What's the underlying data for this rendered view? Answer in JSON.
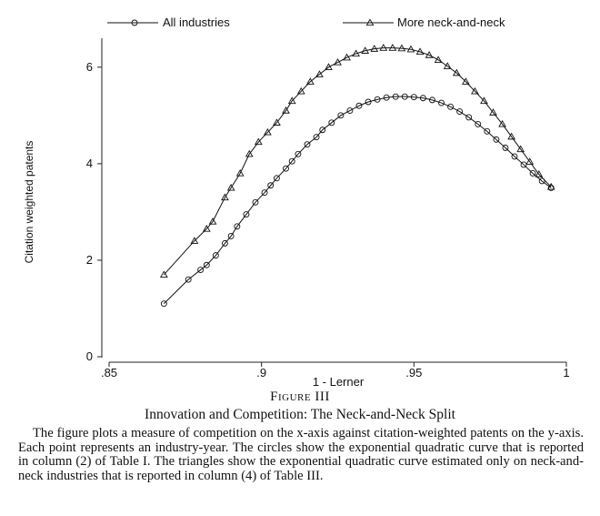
{
  "chart_data": {
    "type": "scatter",
    "xlabel": "1 - Lerner",
    "ylabel": "Citation weighted patents",
    "xlim": [
      0.85,
      1.0
    ],
    "ylim": [
      0,
      6.6
    ],
    "x_ticks": [
      0.85,
      0.9,
      0.95,
      1.0
    ],
    "x_tick_labels": [
      ".85",
      ".9",
      ".95",
      "1"
    ],
    "y_ticks": [
      0,
      2,
      4,
      6
    ],
    "y_tick_labels": [
      "0",
      "2",
      "4",
      "6"
    ],
    "grid": false,
    "legend_position": "top",
    "series": [
      {
        "name": "All industries",
        "marker": "circle",
        "x": [
          0.868,
          0.876,
          0.88,
          0.882,
          0.885,
          0.888,
          0.89,
          0.892,
          0.895,
          0.898,
          0.901,
          0.903,
          0.905,
          0.908,
          0.91,
          0.912,
          0.915,
          0.918,
          0.92,
          0.923,
          0.926,
          0.929,
          0.932,
          0.935,
          0.938,
          0.941,
          0.944,
          0.947,
          0.95,
          0.953,
          0.956,
          0.959,
          0.962,
          0.965,
          0.968,
          0.971,
          0.974,
          0.977,
          0.98,
          0.983,
          0.986,
          0.989,
          0.992,
          0.995
        ],
        "y": [
          1.1,
          1.6,
          1.8,
          1.9,
          2.1,
          2.35,
          2.5,
          2.7,
          2.95,
          3.2,
          3.4,
          3.55,
          3.7,
          3.9,
          4.05,
          4.2,
          4.4,
          4.55,
          4.7,
          4.85,
          5.0,
          5.1,
          5.2,
          5.28,
          5.33,
          5.37,
          5.39,
          5.39,
          5.38,
          5.36,
          5.32,
          5.26,
          5.18,
          5.08,
          4.96,
          4.82,
          4.67,
          4.5,
          4.33,
          4.15,
          3.98,
          3.8,
          3.64,
          3.5
        ]
      },
      {
        "name": "More neck-and-neck",
        "marker": "triangle",
        "x": [
          0.868,
          0.878,
          0.882,
          0.884,
          0.888,
          0.89,
          0.893,
          0.896,
          0.899,
          0.902,
          0.905,
          0.908,
          0.91,
          0.913,
          0.916,
          0.919,
          0.922,
          0.925,
          0.928,
          0.931,
          0.934,
          0.937,
          0.94,
          0.943,
          0.946,
          0.949,
          0.952,
          0.955,
          0.958,
          0.961,
          0.964,
          0.967,
          0.97,
          0.973,
          0.976,
          0.979,
          0.982,
          0.985,
          0.988,
          0.991,
          0.995
        ],
        "y": [
          1.7,
          2.4,
          2.65,
          2.8,
          3.3,
          3.5,
          3.8,
          4.2,
          4.45,
          4.65,
          4.85,
          5.1,
          5.3,
          5.5,
          5.7,
          5.85,
          6.0,
          6.1,
          6.2,
          6.28,
          6.34,
          6.38,
          6.4,
          6.4,
          6.39,
          6.37,
          6.32,
          6.25,
          6.15,
          6.02,
          5.88,
          5.7,
          5.5,
          5.3,
          5.06,
          4.82,
          4.56,
          4.3,
          4.04,
          3.78,
          3.52
        ]
      }
    ]
  },
  "caption": {
    "figure_label": "Figure III",
    "title": "Innovation and Competition: The Neck-and-Neck Split",
    "text": "The figure plots a measure of competition on the x-axis against citation-weighted patents on the y-axis. Each point represents an industry-year. The circles show the exponential quadratic curve that is reported in column (2) of Table I. The triangles show the exponential quadratic curve estimated only on neck-and-neck industries that is reported in column (4) of Table III."
  }
}
